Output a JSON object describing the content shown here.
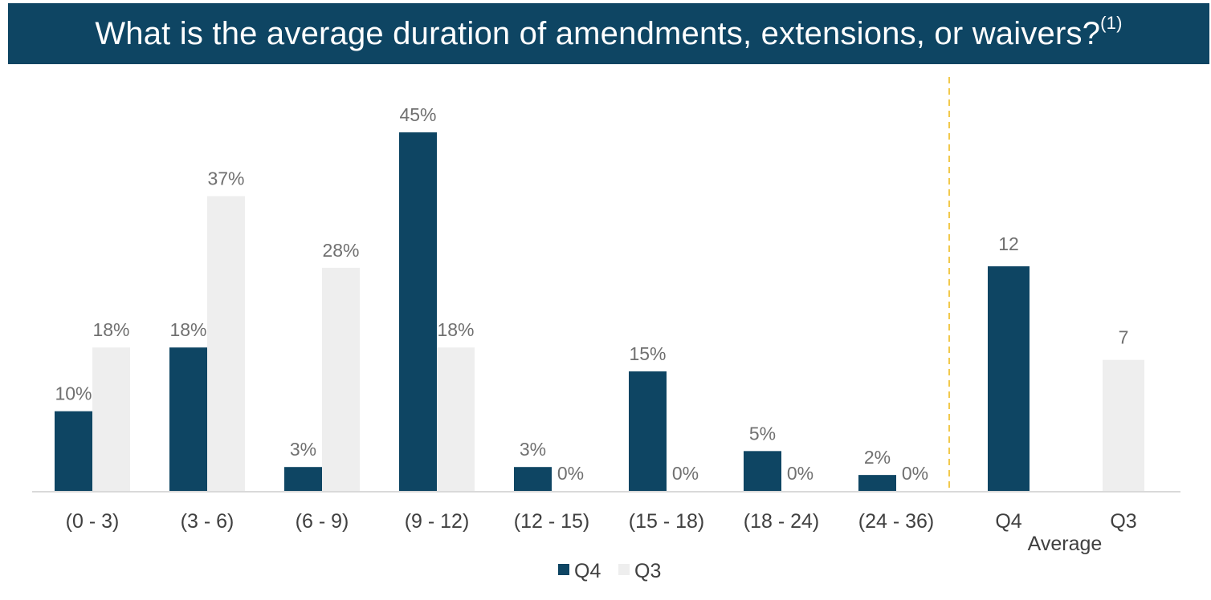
{
  "chart_data": {
    "type": "bar",
    "title": "What is the average duration of amendments, extensions, or waivers?",
    "title_footnote": "(1)",
    "categories": [
      "(0 - 3)",
      "(3 - 6)",
      "(6 - 9)",
      "(9 - 12)",
      "(12 - 15)",
      "(15 - 18)",
      "(18 - 24)",
      "(24 - 36)"
    ],
    "series": [
      {
        "name": "Q4",
        "color": "#0e4563",
        "values": [
          10,
          18,
          3,
          45,
          3,
          15,
          5,
          2
        ],
        "labels": [
          "10%",
          "18%",
          "3%",
          "45%",
          "3%",
          "15%",
          "5%",
          "2%"
        ]
      },
      {
        "name": "Q3",
        "color": "#eeeeee",
        "values": [
          18,
          37,
          28,
          18,
          0,
          0,
          0,
          0
        ],
        "labels": [
          "18%",
          "37%",
          "28%",
          "18%",
          "0%",
          "0%",
          "0%",
          "0%"
        ]
      }
    ],
    "average": {
      "label": "Average",
      "bars": [
        {
          "name": "Q4",
          "value": 12,
          "label": "12",
          "color": "#0e4563"
        },
        {
          "name": "Q3",
          "value": 7,
          "label": "7",
          "color": "#eeeeee"
        }
      ]
    },
    "legend": [
      {
        "name": "Q4",
        "color": "#0e4563"
      },
      {
        "name": "Q3",
        "color": "#eeeeee"
      }
    ],
    "legend_position": "bottom",
    "separator_color": "#f2c94c",
    "grid": false
  }
}
